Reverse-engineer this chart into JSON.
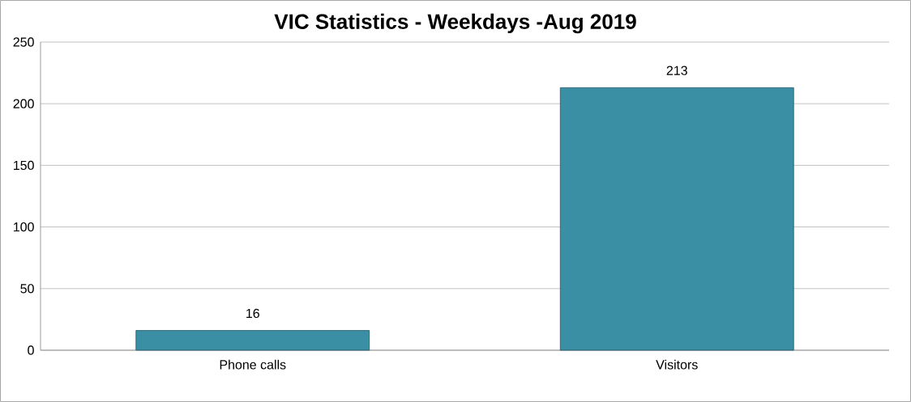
{
  "chart_data": {
    "type": "bar",
    "title": "VIC Statistics - Weekdays -Aug 2019",
    "categories": [
      "Phone calls",
      "Visitors"
    ],
    "values": [
      16,
      213
    ],
    "color": "#3a8fa5",
    "ylim": [
      0,
      250
    ],
    "yticks": [
      0,
      50,
      100,
      150,
      200,
      250
    ],
    "grid": "y",
    "data_labels": true
  }
}
